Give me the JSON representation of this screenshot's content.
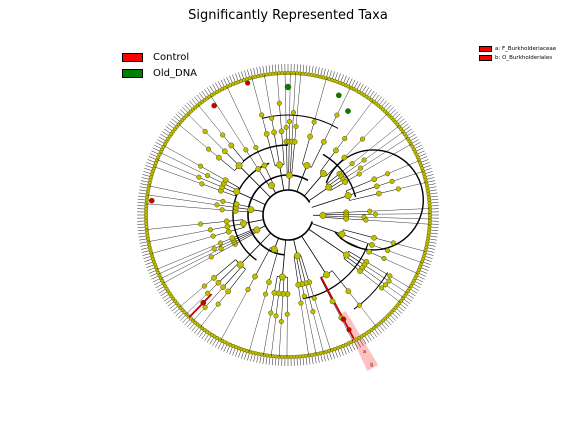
{
  "title": "Significantly Represented Taxa",
  "legend": {
    "groups": [
      {
        "label": "Control",
        "color": "#ff0000"
      },
      {
        "label": "Old_DNA",
        "color": "#008000"
      }
    ],
    "biomarkers": [
      {
        "label": "a: F_Burkholderiaceae",
        "color": "#ff0000"
      },
      {
        "label": "b: O_Burkholderiales",
        "color": "#ff0000"
      }
    ]
  },
  "highlight_markers": [
    "a",
    "b"
  ],
  "colors": {
    "node_default": "#bfbf00",
    "node_edge": "#4d4d00",
    "branch": "#000000",
    "highlight_fill": "#ffb0b0"
  }
}
